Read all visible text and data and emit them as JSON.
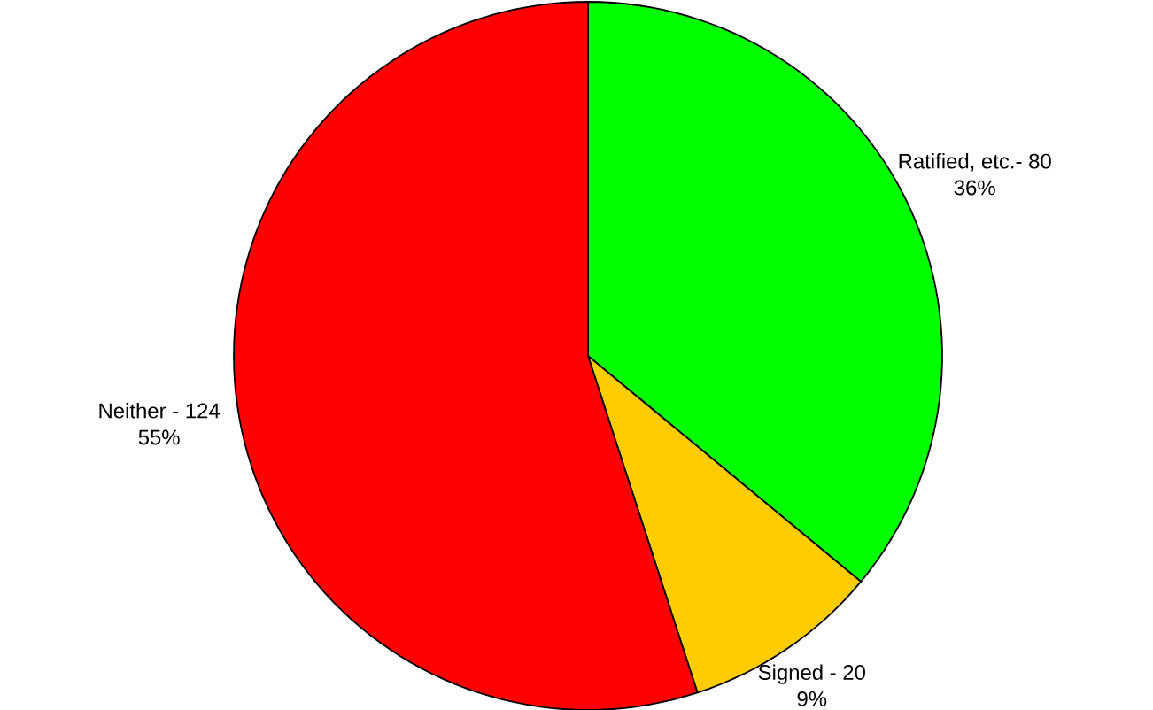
{
  "chart_data": {
    "type": "pie",
    "categories": [
      "Ratified, etc.- 80",
      "Signed - 20",
      "Neither - 124"
    ],
    "values": [
      36,
      9,
      55
    ],
    "value_labels": [
      "36%",
      "9%",
      "55%"
    ],
    "colors": [
      "#00ff00",
      "#ffcc00",
      "#ff0000"
    ]
  }
}
